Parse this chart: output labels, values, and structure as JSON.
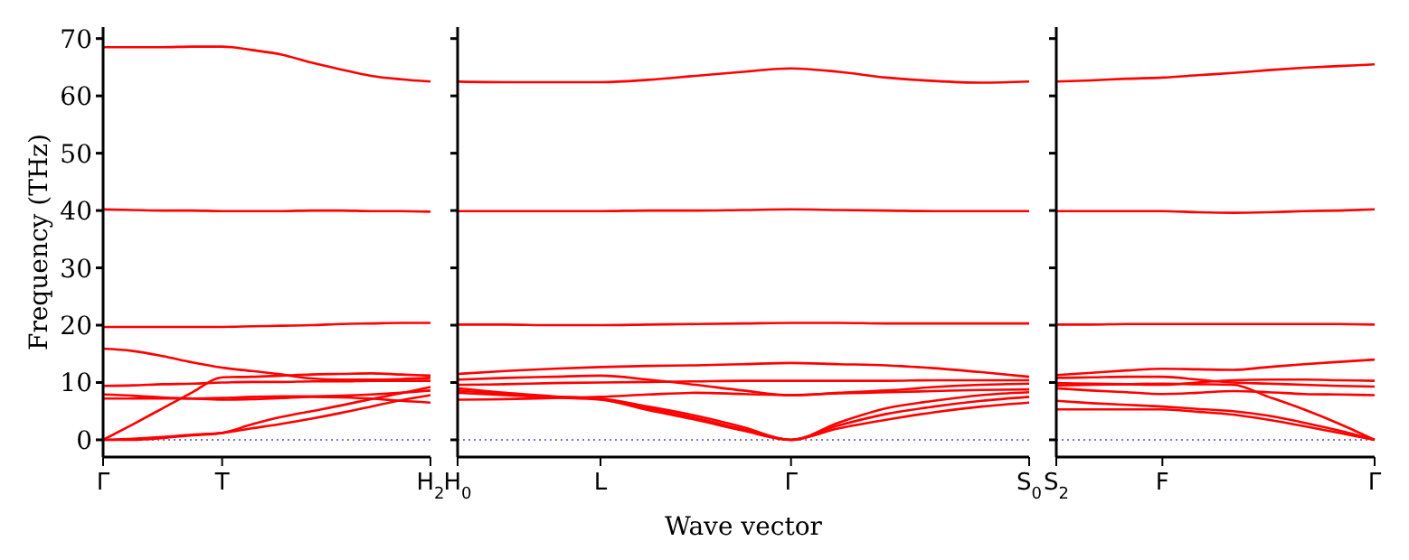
{
  "chart_data": [
    {
      "type": "line",
      "ylabel": "Frequency (THz)",
      "categories": [
        "Γ",
        null,
        null,
        null,
        "T",
        null,
        null,
        null,
        null,
        null,
        null,
        "H$_{2}$"
      ],
      "ylim": [
        -3,
        72
      ],
      "yticks": [
        0,
        10,
        20,
        30,
        40,
        50,
        60,
        70
      ],
      "ref_lines": [
        {
          "axis": "y",
          "value": 0,
          "color": "#7777cc",
          "line_style": "dotted"
        }
      ],
      "series": [
        {
          "color": "#ff0000",
          "values": [
            68.5,
            68.5,
            68.5,
            68.6,
            68.6,
            68.0,
            67.2,
            65.8,
            64.6,
            63.5,
            62.9,
            62.5
          ]
        },
        {
          "color": "#ff0000",
          "values": [
            40.2,
            40.1,
            40.0,
            40.0,
            39.9,
            39.9,
            39.9,
            40.0,
            40.0,
            39.9,
            39.9,
            39.8
          ]
        },
        {
          "color": "#ff0000",
          "values": [
            19.7,
            19.7,
            19.7,
            19.7,
            19.7,
            19.8,
            19.9,
            20.0,
            20.2,
            20.3,
            20.4,
            20.4
          ]
        },
        {
          "color": "#ff0000",
          "values": [
            15.9,
            15.5,
            14.6,
            13.5,
            12.6,
            12.0,
            11.4,
            10.7,
            10.5,
            10.5,
            10.6,
            10.8
          ]
        },
        {
          "color": "#ff0000",
          "values": [
            0,
            2.7,
            5.5,
            8.3,
            10.9,
            11.0,
            11.2,
            11.4,
            11.5,
            11.6,
            11.4,
            11.2
          ]
        },
        {
          "color": "#ff0000",
          "values": [
            9.4,
            9.5,
            9.7,
            9.8,
            10.0,
            10.1,
            10.1,
            10.2,
            10.2,
            10.3,
            10.3,
            10.3
          ]
        },
        {
          "color": "#ff0000",
          "values": [
            7.9,
            7.7,
            7.4,
            7.2,
            7.0,
            7.1,
            7.3,
            7.5,
            7.4,
            7.2,
            6.8,
            6.5
          ]
        },
        {
          "color": "#ff0000",
          "values": [
            7.2,
            7.2,
            7.2,
            7.2,
            7.3,
            7.5,
            7.6,
            7.6,
            7.7,
            7.9,
            8.2,
            8.6
          ]
        },
        {
          "color": "#ff0000",
          "values": [
            0,
            0,
            0.3,
            0.8,
            1.2,
            2.7,
            4.0,
            5.0,
            6.0,
            7.1,
            8.1,
            9.2
          ]
        },
        {
          "color": "#ff0000",
          "values": [
            0,
            0.2,
            0.5,
            0.9,
            1.2,
            2.0,
            2.8,
            3.7,
            4.7,
            5.8,
            6.9,
            7.8
          ]
        }
      ]
    },
    {
      "type": "line",
      "xlabel": "Wave vector",
      "tick_labels": "x",
      "categories": [
        "H$_{0}$",
        null,
        null,
        "L",
        null,
        null,
        null,
        "Γ",
        null,
        null,
        null,
        null,
        "S$_{0}$"
      ],
      "ylim": [
        -3,
        72
      ],
      "yticks": [
        0,
        10,
        20,
        30,
        40,
        50,
        60,
        70
      ],
      "ref_lines": [
        {
          "axis": "y",
          "value": 0,
          "color": "#7777cc",
          "line_style": "dotted"
        }
      ],
      "series": [
        {
          "color": "#ff0000",
          "values": [
            62.5,
            62.4,
            62.4,
            62.4,
            62.8,
            63.5,
            64.2,
            64.8,
            64.2,
            63.2,
            62.6,
            62.3,
            62.5
          ]
        },
        {
          "color": "#ff0000",
          "values": [
            39.9,
            39.9,
            39.9,
            39.9,
            40.0,
            40.0,
            40.1,
            40.2,
            40.1,
            40.0,
            39.9,
            39.9,
            39.9
          ]
        },
        {
          "color": "#ff0000",
          "values": [
            20.1,
            20.1,
            20.0,
            20.0,
            20.1,
            20.2,
            20.3,
            20.4,
            20.4,
            20.3,
            20.3,
            20.3,
            20.3
          ]
        },
        {
          "color": "#ff0000",
          "values": [
            11.5,
            12.0,
            12.4,
            12.7,
            12.9,
            13.0,
            13.2,
            13.4,
            13.2,
            13.0,
            12.5,
            11.8,
            11.0
          ]
        },
        {
          "color": "#ff0000",
          "values": [
            10.5,
            10.8,
            11.0,
            11.2,
            10.5,
            9.6,
            8.6,
            7.8,
            8.2,
            8.6,
            9.2,
            9.6,
            9.8
          ]
        },
        {
          "color": "#ff0000",
          "values": [
            9.6,
            9.7,
            9.9,
            10.0,
            10.1,
            10.2,
            10.3,
            10.3,
            10.3,
            10.3,
            10.4,
            10.4,
            10.4
          ]
        },
        {
          "color": "#ff0000",
          "values": [
            7.0,
            7.1,
            7.3,
            7.5,
            7.9,
            8.2,
            8.0,
            7.8,
            8.1,
            8.3,
            8.5,
            8.7,
            8.8
          ]
        },
        {
          "color": "#ff0000",
          "values": [
            9.0,
            8.2,
            7.6,
            7.1,
            5.5,
            3.8,
            1.8,
            0,
            2.0,
            3.5,
            4.8,
            5.8,
            6.5
          ]
        },
        {
          "color": "#ff0000",
          "values": [
            8.2,
            7.8,
            7.4,
            7.0,
            5.2,
            3.5,
            1.6,
            0,
            2.5,
            4.5,
            5.8,
            6.8,
            7.5
          ]
        },
        {
          "color": "#ff0000",
          "values": [
            8.6,
            8.0,
            7.5,
            7.2,
            5.8,
            4.2,
            2.2,
            0,
            3.0,
            5.5,
            6.8,
            7.8,
            8.3
          ]
        }
      ]
    },
    {
      "type": "line",
      "tick_labels": "x",
      "categories": [
        "S$_{2}$",
        null,
        null,
        "F",
        null,
        null,
        null,
        null,
        null,
        "Γ"
      ],
      "ylim": [
        -3,
        72
      ],
      "yticks": [
        0,
        10,
        20,
        30,
        40,
        50,
        60,
        70
      ],
      "ref_lines": [
        {
          "axis": "y",
          "value": 0,
          "color": "#7777cc",
          "line_style": "dotted"
        }
      ],
      "series": [
        {
          "color": "#ff0000",
          "values": [
            62.5,
            62.7,
            63.0,
            63.2,
            63.6,
            64.0,
            64.5,
            64.9,
            65.2,
            65.5
          ]
        },
        {
          "color": "#ff0000",
          "values": [
            39.9,
            39.9,
            39.9,
            39.9,
            39.7,
            39.6,
            39.7,
            39.9,
            40.0,
            40.2
          ]
        },
        {
          "color": "#ff0000",
          "values": [
            20.1,
            20.1,
            20.2,
            20.2,
            20.2,
            20.2,
            20.2,
            20.2,
            20.2,
            20.1
          ]
        },
        {
          "color": "#ff0000",
          "values": [
            11.3,
            11.7,
            12.1,
            12.4,
            12.3,
            12.2,
            12.7,
            13.2,
            13.6,
            14.0
          ]
        },
        {
          "color": "#ff0000",
          "values": [
            10.8,
            10.9,
            11.0,
            11.0,
            10.5,
            10.0,
            9.8,
            9.6,
            9.4,
            9.3
          ]
        },
        {
          "color": "#ff0000",
          "values": [
            9.9,
            9.8,
            9.7,
            9.6,
            10.0,
            10.4,
            10.5,
            10.5,
            10.4,
            10.3
          ]
        },
        {
          "color": "#ff0000",
          "values": [
            9.0,
            8.6,
            8.3,
            8.0,
            8.2,
            8.5,
            8.3,
            8.0,
            7.9,
            7.8
          ]
        },
        {
          "color": "#ff0000",
          "values": [
            9.5,
            9.6,
            9.7,
            9.8,
            9.7,
            9.6,
            7.5,
            5.3,
            2.8,
            0
          ]
        },
        {
          "color": "#ff0000",
          "values": [
            6.8,
            6.4,
            6.1,
            5.8,
            5.4,
            5.0,
            4.2,
            3.0,
            1.6,
            0
          ]
        },
        {
          "color": "#ff0000",
          "values": [
            5.3,
            5.3,
            5.3,
            5.3,
            4.9,
            4.4,
            3.5,
            2.4,
            1.2,
            0
          ]
        }
      ]
    }
  ]
}
